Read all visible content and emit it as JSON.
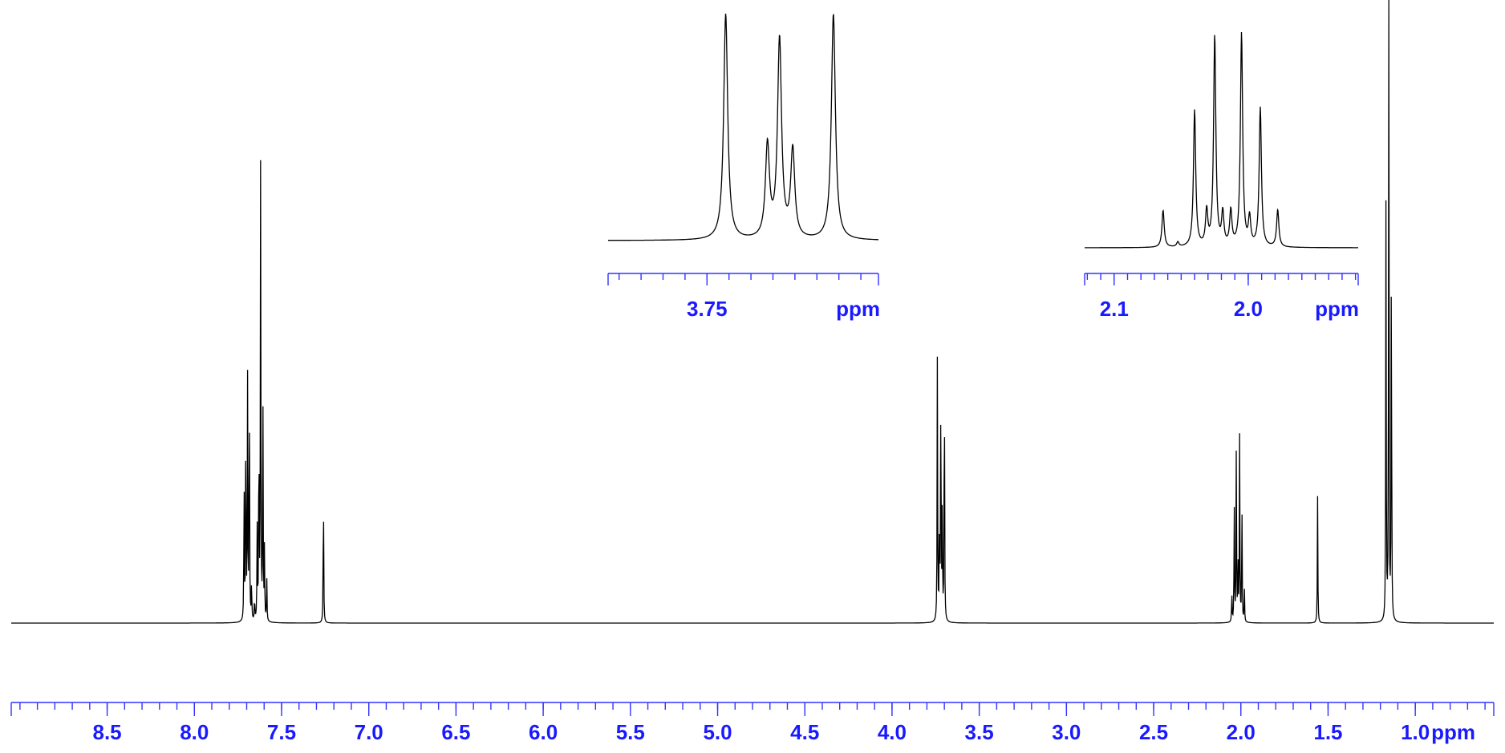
{
  "chart_data": [
    {
      "type": "line",
      "xlabel": "ppm",
      "xlim": [
        9.05,
        0.55
      ],
      "x_reversed": true,
      "x_ticks": [
        "8.5",
        "8.0",
        "7.5",
        "7.0",
        "6.5",
        "6.0",
        "5.5",
        "5.0",
        "4.5",
        "4.0",
        "3.5",
        "3.0",
        "2.5",
        "2.0",
        "1.5",
        "1.0"
      ],
      "minor_tick_step": 0.1,
      "peaks": [
        {
          "x": 7.715,
          "h": 0.3
        },
        {
          "x": 7.705,
          "h": 0.43
        },
        {
          "x": 7.695,
          "h": 0.49
        },
        {
          "x": 7.685,
          "h": 0.54
        },
        {
          "x": 7.672,
          "h": 0.08
        },
        {
          "x": 7.655,
          "h": 0.05
        },
        {
          "x": 7.64,
          "h": 0.19
        },
        {
          "x": 7.63,
          "h": 0.43
        },
        {
          "x": 7.62,
          "h": 1.0
        },
        {
          "x": 7.607,
          "h": 0.44
        },
        {
          "x": 7.598,
          "h": 0.15
        },
        {
          "x": 7.585,
          "h": 0.09
        },
        {
          "x": 7.26,
          "h": 0.3
        },
        {
          "x": 3.74,
          "h": 0.55
        },
        {
          "x": 3.728,
          "h": 0.24
        },
        {
          "x": 3.72,
          "h": 0.51
        },
        {
          "x": 3.712,
          "h": 0.24
        },
        {
          "x": 3.7,
          "h": 0.56
        },
        {
          "x": 2.052,
          "h": 0.06
        },
        {
          "x": 2.038,
          "h": 0.25
        },
        {
          "x": 2.026,
          "h": 0.37
        },
        {
          "x": 2.016,
          "h": 0.12
        },
        {
          "x": 2.007,
          "h": 0.38
        },
        {
          "x": 1.994,
          "h": 0.25
        },
        {
          "x": 1.98,
          "h": 0.07
        },
        {
          "x": 1.56,
          "h": 0.26
        },
        {
          "x": 1.168,
          "h": 0.86
        },
        {
          "x": 1.152,
          "h": 1.35
        },
        {
          "x": 1.137,
          "h": 0.82
        }
      ]
    },
    {
      "type": "line",
      "inset": true,
      "xlabel": "ppm",
      "xlim": [
        3.795,
        3.672
      ],
      "x_reversed": true,
      "x_ticks": [
        "3.75"
      ],
      "minor_tick_step": 0.01,
      "peaks": [
        {
          "x": 3.7415,
          "h": 1.0
        },
        {
          "x": 3.7225,
          "h": 0.41
        },
        {
          "x": 3.717,
          "h": 0.88
        },
        {
          "x": 3.711,
          "h": 0.39
        },
        {
          "x": 3.6925,
          "h": 1.0
        }
      ]
    },
    {
      "type": "line",
      "inset": true,
      "xlabel": "ppm",
      "xlim": [
        2.122,
        1.918
      ],
      "x_reversed": true,
      "x_ticks": [
        "2.1",
        "2.0"
      ],
      "minor_tick_step": 0.01,
      "peaks": [
        {
          "x": 2.0635,
          "h": 0.16
        },
        {
          "x": 2.0525,
          "h": 0.02
        },
        {
          "x": 2.04,
          "h": 0.59
        },
        {
          "x": 2.031,
          "h": 0.15
        },
        {
          "x": 2.025,
          "h": 0.91
        },
        {
          "x": 2.019,
          "h": 0.14
        },
        {
          "x": 2.013,
          "h": 0.15
        },
        {
          "x": 2.005,
          "h": 0.92
        },
        {
          "x": 1.999,
          "h": 0.12
        },
        {
          "x": 1.991,
          "h": 0.6
        },
        {
          "x": 1.978,
          "h": 0.16
        }
      ]
    }
  ]
}
